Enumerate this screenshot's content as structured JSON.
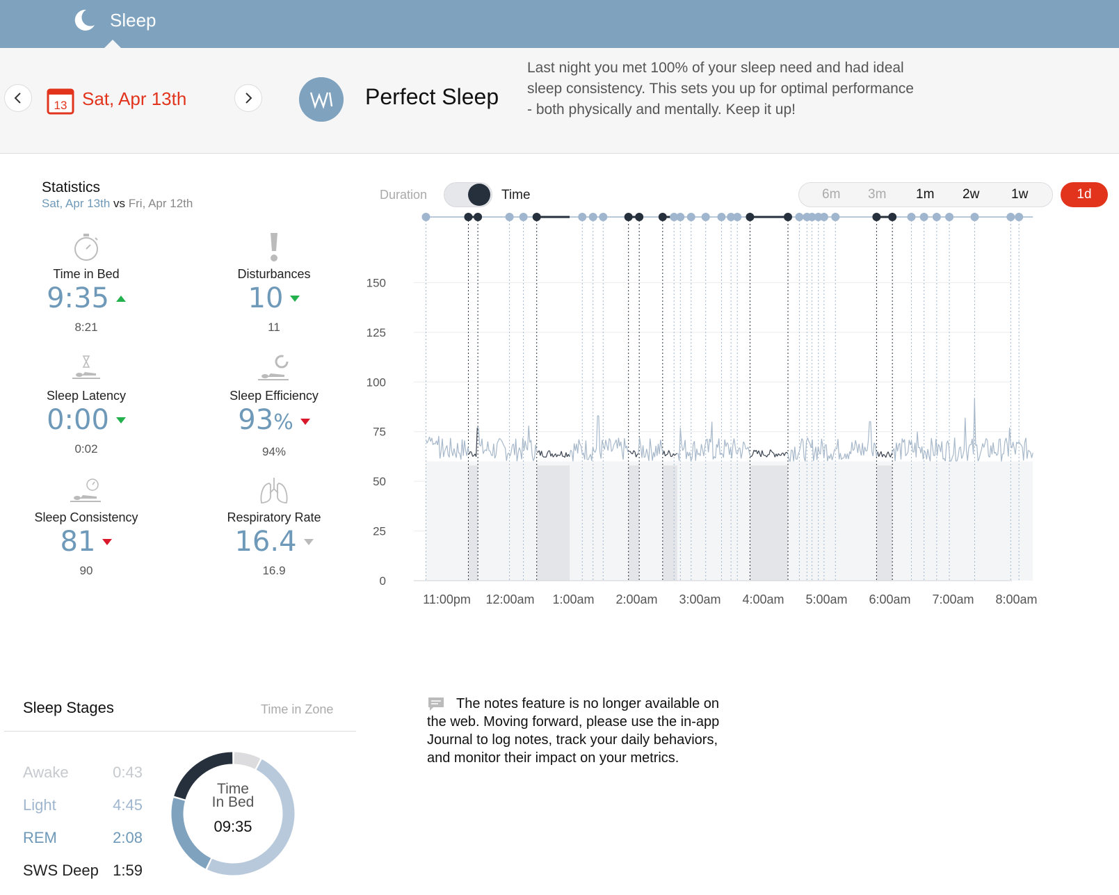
{
  "topbar": {
    "title": "Sleep",
    "icon": "moon-icon"
  },
  "header": {
    "date_number": "13",
    "date_label": "Sat, Apr 13th",
    "headline": "Perfect Sleep",
    "summary": "Last night you met 100% of your sleep need and had ideal sleep consistency. This sets you up for optimal performance - both physically and mentally. Keep it up!",
    "accent_color": "#e2341d",
    "brand_color": "#7fa2be"
  },
  "statistics": {
    "title": "Statistics",
    "current": "Sat, Apr 13th",
    "vs": "vs",
    "previous": "Fri, Apr 12th",
    "items": [
      {
        "label": "Time in Bed",
        "value": "9:35",
        "unit": "",
        "prev": "8:21",
        "trend": "up-good",
        "icon": "stopwatch-icon"
      },
      {
        "label": "Disturbances",
        "value": "10",
        "unit": "",
        "prev": "11",
        "trend": "down-good",
        "icon": "exclamation-icon"
      },
      {
        "label": "Sleep Latency",
        "value": "0:00",
        "unit": "",
        "prev": "0:02",
        "trend": "down-good",
        "icon": "hourglass-bed-icon"
      },
      {
        "label": "Sleep Efficiency",
        "value": "93",
        "unit": "%",
        "prev": "94%",
        "trend": "down-bad",
        "icon": "efficiency-bed-icon"
      },
      {
        "label": "Sleep Consistency",
        "value": "81",
        "unit": "",
        "prev": "90",
        "trend": "down-bad",
        "icon": "clock-bed-icon"
      },
      {
        "label": "Respiratory Rate",
        "value": "16.4",
        "unit": "",
        "prev": "16.9",
        "trend": "down-neutral",
        "icon": "lungs-icon"
      }
    ]
  },
  "chart_controls": {
    "duration_label": "Duration",
    "time_label": "Time",
    "ranges": [
      "6m",
      "3m",
      "1m",
      "2w",
      "1w"
    ],
    "active_range": "1d"
  },
  "chart_data": {
    "type": "line",
    "series_name": "",
    "ylim": [
      0,
      175
    ],
    "yticks": [
      0,
      25,
      50,
      75,
      100,
      125,
      150
    ],
    "xlim_hours": [
      22.5,
      32.5
    ],
    "xticks": [
      {
        "label": "11:00pm",
        "hour": 23
      },
      {
        "label": "12:00am",
        "hour": 24
      },
      {
        "label": "1:00am",
        "hour": 25
      },
      {
        "label": "2:00am",
        "hour": 26
      },
      {
        "label": "3:00am",
        "hour": 27
      },
      {
        "label": "4:00am",
        "hour": 28
      },
      {
        "label": "5:00am",
        "hour": 29
      },
      {
        "label": "6:00am",
        "hour": 30
      },
      {
        "label": "7:00am",
        "hour": 31
      },
      {
        "label": "8:00am",
        "hour": 32
      }
    ],
    "sleep_start_hour": 22.78,
    "sleep_end_hour": 32.37,
    "baseline": 60,
    "deep_periods": [
      [
        23.45,
        23.6
      ],
      [
        24.53,
        25.05
      ],
      [
        25.98,
        26.15
      ],
      [
        26.52,
        26.75
      ],
      [
        27.9,
        28.5
      ],
      [
        29.9,
        30.15
      ]
    ],
    "awake_periods": [
      [
        31.75,
        31.85
      ]
    ],
    "spikes": [
      {
        "hour": 23.6,
        "value": 77
      },
      {
        "hour": 24.4,
        "value": 78
      },
      {
        "hour": 25.5,
        "value": 83
      },
      {
        "hour": 26.8,
        "value": 77
      },
      {
        "hour": 27.3,
        "value": 80
      },
      {
        "hour": 29.8,
        "value": 80
      },
      {
        "hour": 30.55,
        "value": 75
      },
      {
        "hour": 31.45,
        "value": 92
      },
      {
        "hour": 31.3,
        "value": 82
      },
      {
        "hour": 32.0,
        "value": 77
      }
    ],
    "event_markers": [
      22.78,
      23.45,
      23.6,
      24.1,
      24.32,
      24.53,
      25.25,
      25.42,
      25.58,
      25.98,
      26.15,
      26.52,
      26.7,
      26.8,
      26.97,
      27.2,
      27.45,
      27.6,
      27.7,
      27.9,
      28.5,
      28.68,
      28.8,
      28.88,
      28.98,
      29.07,
      29.25,
      29.9,
      30.15,
      30.45,
      30.65,
      30.85,
      31.05,
      31.45,
      32.02,
      32.15
    ]
  },
  "sleep_stages": {
    "title": "Sleep Stages",
    "subtitle": "Time in Zone",
    "stages": [
      {
        "name": "Awake",
        "time": "0:43",
        "minutes": 43,
        "color": "#dcdcde",
        "text_color": "#c6c9ce"
      },
      {
        "name": "Light",
        "time": "4:45",
        "minutes": 285,
        "color": "#b8c9dc",
        "text_color": "#9fb6ce"
      },
      {
        "name": "REM",
        "time": "2:08",
        "minutes": 128,
        "color": "#7fa2be",
        "text_color": "#6e99b8"
      },
      {
        "name": "SWS Deep",
        "time": "1:59",
        "minutes": 119,
        "color": "#26303c",
        "text_color": "#222222"
      }
    ],
    "donut_label_1": "Time",
    "donut_label_2": "In Bed",
    "donut_value": "09:35"
  },
  "notes": {
    "text": "The notes feature is no longer available on the web. Moving forward, please use the in-app Journal to log notes, track your daily behaviors, and monitor their impact on your metrics."
  }
}
